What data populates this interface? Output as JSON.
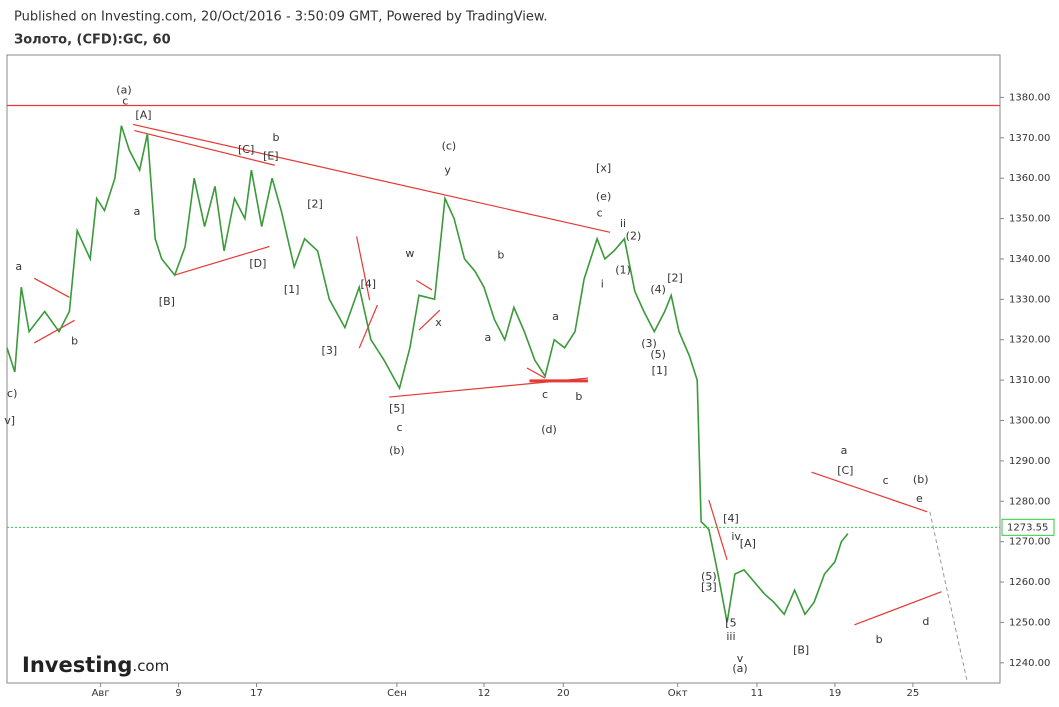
{
  "chart_data": {
    "type": "line",
    "source": "Published on Investing.com, 20/Oct/2016 - 3:50:09 GMT, Powered by TradingView.",
    "title": "Золото, (CFD):GC, 60",
    "logo": "Investing",
    "logo_suffix": ".com",
    "color": "#3a9a3a",
    "x": [
      -7.2,
      -6.6,
      -6.1,
      -5.5,
      -4.3,
      -3.2,
      -2.4,
      -1.8,
      -0.8,
      -0.3,
      0.3,
      1.1,
      1.6,
      2.2,
      3.0,
      3.6,
      4.2,
      4.7,
      5.7,
      6.5,
      7.2,
      8.0,
      8.8,
      9.5,
      10.3,
      11.1,
      11.6,
      12.4,
      13.2,
      13.9,
      14.9,
      15.7,
      16.7,
      17.6,
      18.8,
      19.9,
      20.8,
      21.8,
      23.0,
      23.8,
      24.5,
      25.7,
      26.5,
      27.2,
      28.0,
      28.8,
      29.5,
      30.3,
      31.1,
      31.8,
      32.6,
      33.4,
      34.2,
      34.9,
      35.7,
      36.5,
      37.2,
      38.2,
      38.8,
      39.5,
      40.3,
      41.1,
      41.8,
      42.6,
      43.4,
      43.9,
      44.5,
      45.3,
      45.9,
      46.2,
      46.8,
      47.5,
      48.2,
      48.8,
      49.5,
      50.3,
      51.1,
      51.8,
      52.6,
      53.4,
      54.2,
      54.9,
      55.7,
      56.5,
      57.0,
      57.5
    ],
    "values": [
      1318,
      1312,
      1333,
      1322,
      1327,
      1322,
      1327,
      1347,
      1340,
      1355,
      1352,
      1360,
      1373,
      1367,
      1362,
      1371,
      1345,
      1340,
      1336,
      1343,
      1360,
      1348,
      1358,
      1342,
      1355,
      1350,
      1362,
      1348,
      1360,
      1352,
      1338,
      1345,
      1342,
      1330,
      1323,
      1333,
      1320,
      1315,
      1308,
      1318,
      1331,
      1330,
      1355,
      1350,
      1340,
      1337,
      1333,
      1325,
      1320,
      1328,
      1322,
      1315,
      1311,
      1320,
      1318,
      1322,
      1335,
      1345,
      1340,
      1342,
      1345,
      1332,
      1327,
      1322,
      1327,
      1331,
      1322,
      1316,
      1310,
      1275,
      1273,
      1262,
      1250,
      1262,
      1263,
      1260,
      1257,
      1255,
      1252,
      1258,
      1252,
      1255,
      1262,
      1265,
      1270,
      1272
    ],
    "xlim": [
      -7.2,
      69.2
    ],
    "ylim": [
      1235,
      1390.5
    ],
    "xticks": [
      {
        "value": 0,
        "label": "Авг"
      },
      {
        "value": 6,
        "label": "9"
      },
      {
        "value": 12,
        "label": "17"
      },
      {
        "value": 22.8,
        "label": "Сен"
      },
      {
        "value": 29.5,
        "label": "12"
      },
      {
        "value": 35.6,
        "label": "20"
      },
      {
        "value": 44.4,
        "label": "Окт"
      },
      {
        "value": 50.5,
        "label": "11"
      },
      {
        "value": 56.5,
        "label": "19"
      },
      {
        "value": 62.5,
        "label": "25"
      }
    ],
    "yticks": [
      {
        "value": 1240,
        "label": "1240.00"
      },
      {
        "value": 1250,
        "label": "1250.00"
      },
      {
        "value": 1260,
        "label": "1260.00"
      },
      {
        "value": 1270,
        "label": "1270.00"
      },
      {
        "value": 1280,
        "label": "1280.00"
      },
      {
        "value": 1290,
        "label": "1290.00"
      },
      {
        "value": 1300,
        "label": "1300.00"
      },
      {
        "value": 1310,
        "label": "1310.00"
      },
      {
        "value": 1320,
        "label": "1320.00"
      },
      {
        "value": 1330,
        "label": "1330.00"
      },
      {
        "value": 1340,
        "label": "1340.00"
      },
      {
        "value": 1350,
        "label": "1350.00"
      },
      {
        "value": 1360,
        "label": "1360.00"
      },
      {
        "value": 1370,
        "label": "1370.00"
      },
      {
        "value": 1380,
        "label": "1380.00"
      }
    ],
    "hline": {
      "value": 1378,
      "color": "#e53935"
    },
    "last_price": {
      "value": 1273.55,
      "label": "1273.55",
      "color": "#2ecc40"
    },
    "trendline_color": "#e53935",
    "trendlines": [
      [
        2.5,
        1373.3,
        39.2,
        1346.6
      ],
      [
        2.6,
        1371.8,
        13.4,
        1363.2
      ],
      [
        5.7,
        1336,
        13,
        1343.1
      ],
      [
        -5.1,
        1335.2,
        -2.4,
        1330.5
      ],
      [
        -5.1,
        1319.2,
        -2,
        1324.8
      ],
      [
        19.7,
        1345.6,
        20.7,
        1329.8
      ],
      [
        19.9,
        1317.9,
        21.3,
        1328.6
      ],
      [
        22.2,
        1305.8,
        37.5,
        1310.5
      ],
      [
        24.5,
        1322.4,
        26.1,
        1327.3
      ],
      [
        24.3,
        1334.7,
        25.5,
        1332.3
      ],
      [
        32.8,
        1313,
        34.2,
        1310.5
      ],
      [
        33,
        1309.8,
        37.5,
        1309.8
      ],
      [
        46.8,
        1280.3,
        48.2,
        1265.5
      ],
      [
        54.7,
        1287.2,
        63.6,
        1277.4
      ],
      [
        58,
        1249.4,
        64.7,
        1257.6
      ]
    ],
    "projection": [
      63.8,
      1277.4,
      66.7,
      1235
    ],
    "annotations": [
      {
        "text": "(a)",
        "x": 1.8,
        "y": 1381.7
      },
      {
        "text": "c",
        "x": 1.9,
        "y": 1379
      },
      {
        "text": "[A]",
        "x": 3.3,
        "y": 1375.5
      },
      {
        "text": "b",
        "x": 13.5,
        "y": 1370
      },
      {
        "text": "[C]",
        "x": 11.2,
        "y": 1367
      },
      {
        "text": "[E]",
        "x": 13.1,
        "y": 1365.4
      },
      {
        "text": "a",
        "x": 2.8,
        "y": 1351.6
      },
      {
        "text": "[B]",
        "x": 5.1,
        "y": 1329.3
      },
      {
        "text": "[D]",
        "x": 12.1,
        "y": 1338.7
      },
      {
        "text": "[2]",
        "x": 16.5,
        "y": 1353.5
      },
      {
        "text": "[1]",
        "x": 14.7,
        "y": 1332.3
      },
      {
        "text": "[3]",
        "x": 17.6,
        "y": 1317.2
      },
      {
        "text": "[4]",
        "x": 20.6,
        "y": 1333.7
      },
      {
        "text": "[5]",
        "x": 22.8,
        "y": 1302.8
      },
      {
        "text": "c",
        "x": 23.0,
        "y": 1298.1
      },
      {
        "text": "(b)",
        "x": 22.8,
        "y": 1292.4
      },
      {
        "text": "w",
        "x": 23.8,
        "y": 1341.2
      },
      {
        "text": "x",
        "x": 26.0,
        "y": 1324.1
      },
      {
        "text": "(c)",
        "x": 26.8,
        "y": 1367.9
      },
      {
        "text": "y",
        "x": 26.7,
        "y": 1361.9
      },
      {
        "text": "b",
        "x": 30.8,
        "y": 1340.9
      },
      {
        "text": "a",
        "x": 29.8,
        "y": 1320.4
      },
      {
        "text": "a",
        "x": 35.0,
        "y": 1325.6
      },
      {
        "text": "c",
        "x": 34.2,
        "y": 1306.3
      },
      {
        "text": "b",
        "x": 36.8,
        "y": 1305.8
      },
      {
        "text": "(d)",
        "x": 34.5,
        "y": 1297.6
      },
      {
        "text": "[x]",
        "x": 38.7,
        "y": 1362.4
      },
      {
        "text": "(e)",
        "x": 38.7,
        "y": 1355.3
      },
      {
        "text": "c",
        "x": 38.4,
        "y": 1351.3
      },
      {
        "text": "ii",
        "x": 40.2,
        "y": 1348.6
      },
      {
        "text": "(2)",
        "x": 41.0,
        "y": 1345.6
      },
      {
        "text": "i",
        "x": 38.6,
        "y": 1333.7
      },
      {
        "text": "(1)",
        "x": 40.2,
        "y": 1337.2
      },
      {
        "text": "(4)",
        "x": 42.9,
        "y": 1332.3
      },
      {
        "text": "[2]",
        "x": 44.2,
        "y": 1335.2
      },
      {
        "text": "(3)",
        "x": 42.2,
        "y": 1318.9
      },
      {
        "text": "(5)",
        "x": 42.9,
        "y": 1316.2
      },
      {
        "text": "[1]",
        "x": 43.0,
        "y": 1312.2
      },
      {
        "text": "a",
        "x": 57.2,
        "y": 1292.4
      },
      {
        "text": "[C]",
        "x": 57.3,
        "y": 1287.5
      },
      {
        "text": "c",
        "x": 60.4,
        "y": 1285
      },
      {
        "text": "(b)",
        "x": 63.1,
        "y": 1285.3
      },
      {
        "text": "e",
        "x": 63.0,
        "y": 1280.6
      },
      {
        "text": "[4]",
        "x": 48.5,
        "y": 1275.6
      },
      {
        "text": "iv",
        "x": 48.9,
        "y": 1271.2
      },
      {
        "text": "[A]",
        "x": 49.8,
        "y": 1269.4
      },
      {
        "text": "(5)",
        "x": 46.8,
        "y": 1261.3
      },
      {
        "text": "[3]",
        "x": 46.8,
        "y": 1258.6
      },
      {
        "text": "[5",
        "x": 48.5,
        "y": 1249.7
      },
      {
        "text": "iii",
        "x": 48.5,
        "y": 1246.4
      },
      {
        "text": "v",
        "x": 49.2,
        "y": 1241
      },
      {
        "text": "(a)",
        "x": 49.2,
        "y": 1238.5
      },
      {
        "text": "[B]",
        "x": 53.9,
        "y": 1243
      },
      {
        "text": "b",
        "x": 59.9,
        "y": 1245.7
      },
      {
        "text": "d",
        "x": 63.5,
        "y": 1250.1
      },
      {
        "text": "a",
        "x": -6.3,
        "y": 1338
      },
      {
        "text": "b",
        "x": -2,
        "y": 1319.6
      },
      {
        "text": "c)",
        "x": -6.8,
        "y": 1306.5
      },
      {
        "text": "v]",
        "x": -7.0,
        "y": 1299.9
      }
    ]
  }
}
